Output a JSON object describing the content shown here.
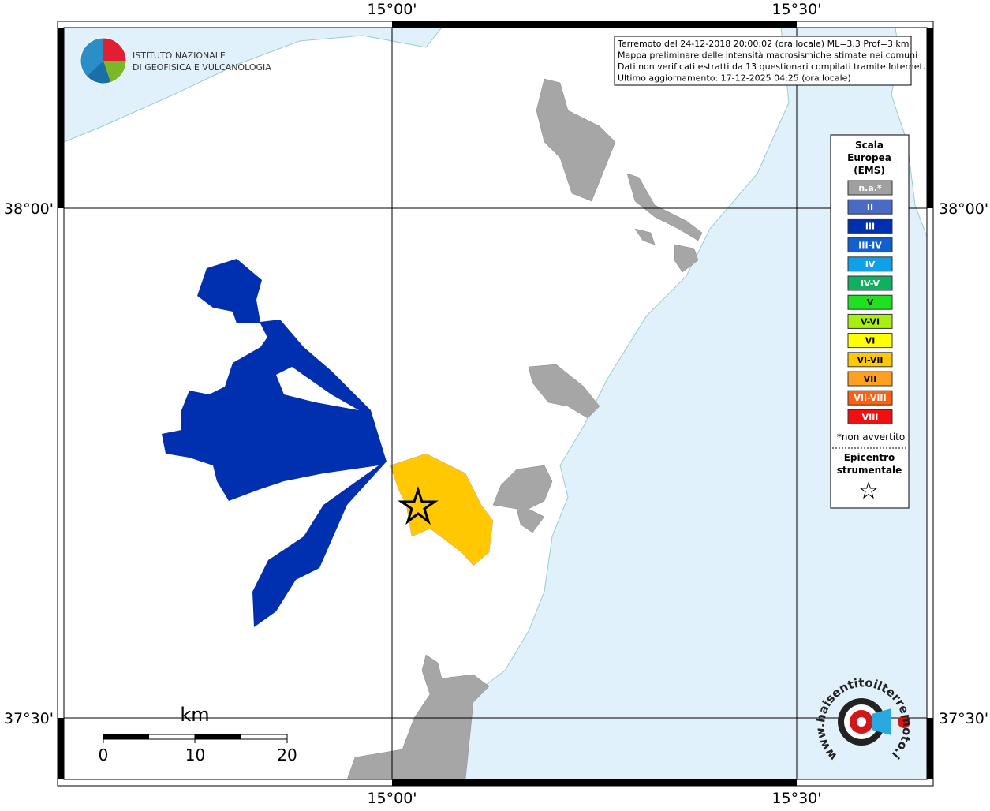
{
  "axes": {
    "top": [
      "15°00'",
      "15°30'"
    ],
    "bottom": [
      "15°00'",
      "15°30'"
    ],
    "left": [
      "38°00'",
      "37°30'"
    ],
    "right": [
      "38°00'",
      "37°30'"
    ]
  },
  "info_box": {
    "lines": [
      "Terremoto del 24-12-2018 20:00:02 (ora locale) ML=3.3 Prof=3 km",
      "Mappa preliminare delle intensità macrosismiche stimate nei comuni",
      "Dati non verificati estratti da 13 questionari compilati tramite Internet.",
      "Ultimo aggiornamento: 17-12-2025 04:25 (ora locale)"
    ]
  },
  "legend": {
    "title": [
      "Scala",
      "Europea",
      "(EMS)"
    ],
    "items": [
      {
        "label": "n.a.*",
        "color": "#a0a0a0"
      },
      {
        "label": "II",
        "color": "#4a6bc4"
      },
      {
        "label": "III",
        "color": "#0030b0"
      },
      {
        "label": "III-IV",
        "color": "#1060d0"
      },
      {
        "label": "IV",
        "color": "#10a0e8"
      },
      {
        "label": "IV-V",
        "color": "#10b060"
      },
      {
        "label": "V",
        "color": "#20e020"
      },
      {
        "label": "V-VI",
        "color": "#a8f010"
      },
      {
        "label": "VI",
        "color": "#ffff00"
      },
      {
        "label": "VI-VII",
        "color": "#ffc800"
      },
      {
        "label": "VII",
        "color": "#ffa020"
      },
      {
        "label": "VII-VIII",
        "color": "#ff6010"
      },
      {
        "label": "VIII",
        "color": "#f01010"
      }
    ],
    "note": "*non avvertito",
    "epicenter": [
      "Epicentro",
      "strumentale"
    ]
  },
  "scale_bar": {
    "unit": "km",
    "labels": [
      "0",
      "10",
      "20"
    ]
  },
  "logo": {
    "lines": [
      "ISTITUTO NAZIONALE",
      "DI GEOFISICA E VULCANOLOGIA"
    ]
  },
  "site_logo": {
    "text": "www.haisentitoilterremoto.it"
  }
}
